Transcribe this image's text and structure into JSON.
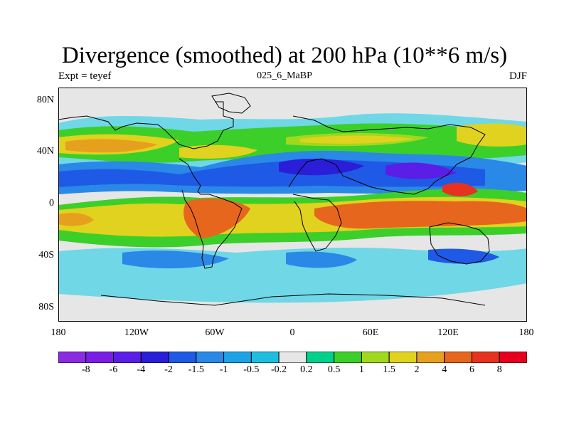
{
  "title": "Divergence (smoothed) at 200 hPa (10**6 m/s)",
  "subtitle_left": "Expt = teyef",
  "subtitle_center": "025_6_MaBP",
  "subtitle_right": "DJF",
  "axes": {
    "y_ticks": [
      "80N",
      "40N",
      "0",
      "40S",
      "80S"
    ],
    "x_ticks": [
      "180",
      "120W",
      "60W",
      "0",
      "60E",
      "120E",
      "180"
    ]
  },
  "colorbar": {
    "labels": [
      "-8",
      "-6",
      "-4",
      "-2",
      "-1.5",
      "-1",
      "-0.5",
      "-0.2",
      "0.2",
      "0.5",
      "1",
      "1.5",
      "2",
      "4",
      "6",
      "8"
    ],
    "colors": [
      "#8a2be2",
      "#7a1ee6",
      "#5a1ee6",
      "#2a1ed8",
      "#1e5ae6",
      "#2a88e6",
      "#1ea2e6",
      "#1ebee0",
      "#e6e6e6",
      "#00d08a",
      "#3ccf2a",
      "#a0d81e",
      "#e0d21e",
      "#e6a01e",
      "#e6661e",
      "#e6321e",
      "#e6001e"
    ]
  }
}
